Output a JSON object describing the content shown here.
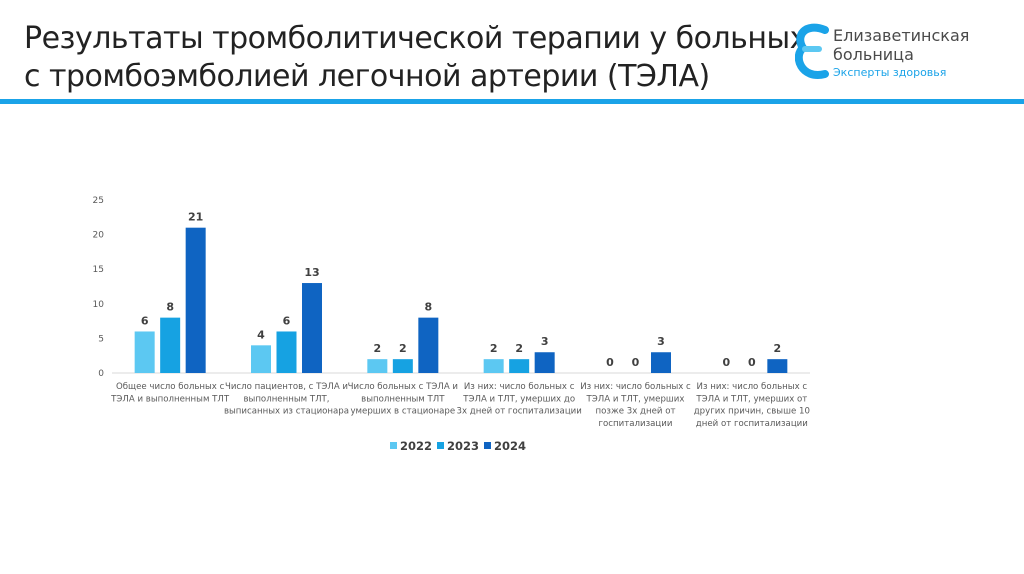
{
  "header": {
    "title_line1": "Результаты тромболитической терапии у больных",
    "title_line2": "с тромбоэмболией легочной артерии (ТЭЛА)"
  },
  "logo": {
    "line1": "Елизаветинская",
    "line2": "больница",
    "tagline": "Эксперты здоровья",
    "color": "#1aa3e8"
  },
  "chart_data": {
    "type": "bar",
    "categories": [
      [
        "Общее число больных с",
        "ТЭЛА и выполненным ТЛТ"
      ],
      [
        "Число пациентов, с ТЭЛА и",
        "выполненным ТЛТ,",
        "выписанных из стационара"
      ],
      [
        "Число больных с ТЭЛА и",
        "выполненным ТЛТ",
        "умерших в стационаре"
      ],
      [
        "Из них: число больных с",
        "ТЭЛА и ТЛТ, умерших до",
        "3х дней от госпитализации"
      ],
      [
        "Из них: число больных с",
        "ТЭЛА и ТЛТ, умерших",
        "позже 3х дней от",
        "госпитализации"
      ],
      [
        "Из них: число больных с",
        "ТЭЛА и ТЛТ, умерших от",
        "других причин, свыше 10",
        "дней от госпитализации"
      ]
    ],
    "series": [
      {
        "name": "2022",
        "values": [
          6,
          4,
          2,
          2,
          0,
          0
        ],
        "color": "#5cc8f2"
      },
      {
        "name": "2023",
        "values": [
          8,
          6,
          2,
          2,
          0,
          0
        ],
        "color": "#16a2e2"
      },
      {
        "name": "2024",
        "values": [
          21,
          13,
          8,
          3,
          3,
          2
        ],
        "color": "#0f64c2"
      }
    ],
    "ylim": [
      0,
      25
    ],
    "yticks": [
      0,
      5,
      10,
      15,
      20,
      25
    ],
    "grid": false,
    "legend": "bottom"
  }
}
